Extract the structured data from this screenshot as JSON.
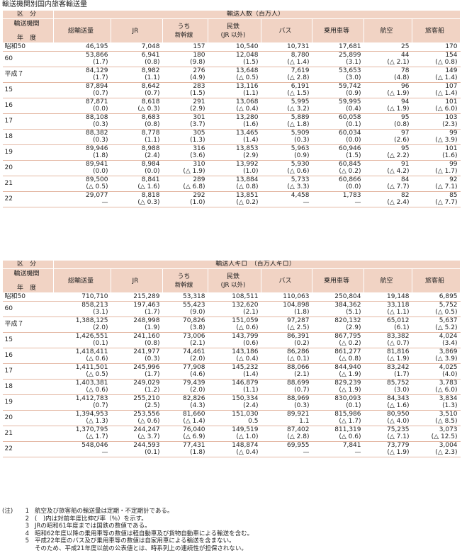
{
  "title": "輸送機関別国内旅客輸送量",
  "header": {
    "kubun": "区　分",
    "mode": "輸送機関",
    "year": "年　度",
    "cols": [
      {
        "main": "総輸送量",
        "sub": ""
      },
      {
        "main": "JR",
        "sub": ""
      },
      {
        "main": "うち",
        "sub": "新幹線"
      },
      {
        "main": "民鉄",
        "sub": "(JR 以外)"
      },
      {
        "main": "バス",
        "sub": ""
      },
      {
        "main": "乗用車等",
        "sub": ""
      },
      {
        "main": "航空",
        "sub": ""
      },
      {
        "main": "旅客船",
        "sub": ""
      }
    ]
  },
  "table1": {
    "unit": "輸送人数（百万人）",
    "rows": [
      {
        "label": "昭和50",
        "values": [
          "46,195",
          "7,048",
          "157",
          "10,540",
          "10,731",
          "17,681",
          "25",
          "170"
        ],
        "changes": null
      },
      {
        "label": "60",
        "values": [
          "53,866",
          "6,941",
          "180",
          "12,048",
          "8,780",
          "25,899",
          "44",
          "154"
        ],
        "changes": [
          "(1.7)",
          "(0.8)",
          "(9.8)",
          "(1.5)",
          "(△ 1.4)",
          "(3.1)",
          "(△ 2.1)",
          "(△ 0.8)"
        ]
      },
      {
        "label": "平成７",
        "values": [
          "84,129",
          "8,982",
          "276",
          "13,648",
          "7,619",
          "53,653",
          "78",
          "149"
        ],
        "changes": [
          "(1.7)",
          "(1.1)",
          "(4.9)",
          "(△ 0.5)",
          "(△ 2.8)",
          "(3.0)",
          "(4.8)",
          "(△ 1.4)"
        ]
      },
      {
        "label": "15",
        "values": [
          "87,894",
          "8,642",
          "283",
          "13,116",
          "6,191",
          "59,742",
          "96",
          "107"
        ],
        "changes": [
          "(0.7)",
          "(0.7)",
          "(1.5)",
          "(1.1)",
          "(△ 1.5)",
          "(0.9)",
          "(△ 1.9)",
          "(△ 1.4)"
        ]
      },
      {
        "label": "16",
        "values": [
          "87,871",
          "8,618",
          "291",
          "13,068",
          "5,995",
          "59,995",
          "94",
          "101"
        ],
        "changes": [
          "(0.0)",
          "(△ 0.3)",
          "(2.9)",
          "(△ 0.4)",
          "(△ 3.2)",
          "(0.4)",
          "(△ 1.9)",
          "(△ 6.0)"
        ]
      },
      {
        "label": "17",
        "values": [
          "88,108",
          "8,683",
          "301",
          "13,280",
          "5,889",
          "60,058",
          "95",
          "103"
        ],
        "changes": [
          "(0.3)",
          "(0.8)",
          "(3.7)",
          "(1.6)",
          "(△ 1.8)",
          "(0.1)",
          "(0.8)",
          "(2.3)"
        ]
      },
      {
        "label": "18",
        "values": [
          "88,382",
          "8,778",
          "305",
          "13,465",
          "5,909",
          "60,034",
          "97",
          "99"
        ],
        "changes": [
          "(0.3)",
          "(1.1)",
          "(1.3)",
          "(1.4)",
          "(0.3)",
          "(0.0)",
          "(2.6)",
          "(△ 3.9)"
        ]
      },
      {
        "label": "19",
        "values": [
          "89,946",
          "8,988",
          "316",
          "13,853",
          "5,963",
          "60,946",
          "95",
          "101"
        ],
        "changes": [
          "(1.8)",
          "(2.4)",
          "(3.6)",
          "(2.9)",
          "(0.9)",
          "(1.5)",
          "(△ 2.2)",
          "(1.6)"
        ]
      },
      {
        "label": "20",
        "values": [
          "89,941",
          "8,984",
          "310",
          "13,992",
          "5,930",
          "60,845",
          "91",
          "99"
        ],
        "changes": [
          "(0.0)",
          "(0.0)",
          "(△ 1.9)",
          "(1.0)",
          "(△ 0.6)",
          "(△ 0.2)",
          "(△ 4.2)",
          "(△ 1.7)"
        ]
      },
      {
        "label": "21",
        "values": [
          "89,500",
          "8,841",
          "289",
          "13,884",
          "5,733",
          "60,866",
          "84",
          "92"
        ],
        "changes": [
          "(△ 0.5)",
          "(△ 1.6)",
          "(△ 6.8)",
          "(△ 0.8)",
          "(△ 3.3)",
          "(0.0)",
          "(△ 7.7)",
          "(△ 7.1)"
        ]
      },
      {
        "label": "22",
        "values": [
          "29,077",
          "8,818",
          "292",
          "13,851",
          "4,458",
          "1,783",
          "82",
          "85"
        ],
        "changes": [
          "—",
          "(△ 0.3)",
          "(1.0)",
          "(△ 0.2)",
          "—",
          "—",
          "(△ 2.4)",
          "(△ 7.7)"
        ]
      }
    ]
  },
  "table2": {
    "unit": "輸送人キロ　（百万人キロ）",
    "rows": [
      {
        "label": "昭和50",
        "values": [
          "710,710",
          "215,289",
          "53,318",
          "108,511",
          "110,063",
          "250,804",
          "19,148",
          "6,895"
        ],
        "changes": null
      },
      {
        "label": "60",
        "values": [
          "858,213",
          "197,463",
          "55,423",
          "132,620",
          "104,898",
          "384,362",
          "33,118",
          "5,752"
        ],
        "changes": [
          "(3.1)",
          "(1.7)",
          "(9.0)",
          "(2.1)",
          "(1.8)",
          "(5.1)",
          "(△ 1.1)",
          "(△ 0.5)"
        ]
      },
      {
        "label": "平成７",
        "values": [
          "1,388,125",
          "248,998",
          "70,826",
          "151,059",
          "97,287",
          "820,132",
          "65,012",
          "5,637"
        ],
        "changes": [
          "(2.0)",
          "(1.9)",
          "(3.8)",
          "(△ 0.6)",
          "(△ 2.5)",
          "(2.9)",
          "(6.1)",
          "(△ 5.2)"
        ]
      },
      {
        "label": "15",
        "values": [
          "1,426,551",
          "241,160",
          "73,006",
          "143,799",
          "86,391",
          "867,795",
          "83,382",
          "4,024"
        ],
        "changes": [
          "(0.1)",
          "(0.8)",
          "(2.1)",
          "(0.6)",
          "(0.2)",
          "(△ 0.2)",
          "(△ 0.7)",
          "(3.4)"
        ]
      },
      {
        "label": "16",
        "values": [
          "1,418,411",
          "241,977",
          "74,461",
          "143,186",
          "86,286",
          "861,277",
          "81,816",
          "3,869"
        ],
        "changes": [
          "(△ 0.6)",
          "(0.3)",
          "(2.0)",
          "(△ 0.4)",
          "(△ 0.1)",
          "(△ 0.8)",
          "(△ 1.9)",
          "(△ 3.9)"
        ]
      },
      {
        "label": "17",
        "values": [
          "1,411,501",
          "245,996",
          "77,908",
          "145,232",
          "88,066",
          "844,940",
          "83,242",
          "4,025"
        ],
        "changes": [
          "(△ 0.5)",
          "(1.7)",
          "(4.6)",
          "(1.4)",
          "(2.1)",
          "(△ 1.9)",
          "(1.7)",
          "(4.0)"
        ]
      },
      {
        "label": "18",
        "values": [
          "1,403,381",
          "249,029",
          "79,439",
          "146,879",
          "88,699",
          "829,239",
          "85,752",
          "3,783"
        ],
        "changes": [
          "(△ 0.6)",
          "(1.2)",
          "(2.0)",
          "(1.1)",
          "(0.7)",
          "(△ 1.9)",
          "(3.0)",
          "(△ 6.0)"
        ]
      },
      {
        "label": "19",
        "values": [
          "1,412,783",
          "255,210",
          "82,826",
          "150,334",
          "88,969",
          "830,093",
          "84,343",
          "3,834"
        ],
        "changes": [
          "(0.7)",
          "(2.5)",
          "(4.3)",
          "(2.4)",
          "(0.3)",
          "(0.1)",
          "(△ 1.6)",
          "(1.3)"
        ]
      },
      {
        "label": "20",
        "values": [
          "1,394,953",
          "253,556",
          "81,660",
          "151,030",
          "89,921",
          "815,986",
          "80,950",
          "3,510"
        ],
        "changes": [
          "(△ 1.3)",
          "(△ 0.6)",
          "(△ 1.4)",
          "0.5",
          "1.1",
          "(△ 1.7)",
          "(△ 4.0)",
          "(△ 8.5)"
        ]
      },
      {
        "label": "21",
        "values": [
          "1,370,795",
          "244,247",
          "76,040",
          "149,519",
          "87,402",
          "811,319",
          "75,235",
          "3,073"
        ],
        "changes": [
          "(△ 1.7)",
          "(△ 3.7)",
          "(△ 6.9)",
          "(△ 1.0)",
          "(△ 2.8)",
          "(△ 0.6)",
          "(△ 7.1)",
          "(△ 12.5)"
        ]
      },
      {
        "label": "22",
        "values": [
          "548,046",
          "244,593",
          "77,431",
          "148,874",
          "69,955",
          "7,841",
          "73,779",
          "3,004"
        ],
        "changes": [
          "—",
          "(0.1)",
          "(1.8)",
          "(△ 0.4)",
          "—",
          "—",
          "(△ 1.9)",
          "(△ 2.3)"
        ]
      }
    ]
  },
  "notes": [
    {
      "pre": "(注)",
      "no": "1",
      "text": "航空及び旅客船の輸送量は定期・不定期計である。"
    },
    {
      "pre": "",
      "no": "2",
      "text": "(　)内は対前年度比伸び率（％）を示す。"
    },
    {
      "pre": "",
      "no": "3",
      "text": "JRの昭和61年度までは国鉄の数値である。"
    },
    {
      "pre": "",
      "no": "4",
      "text": "昭和62年度以降の乗用車等の数値は軽自動車及び貨物自動車による輸送を含む。"
    },
    {
      "pre": "",
      "no": "5",
      "text": "平成22年度のバス及び乗用車等の数値は自家用車による輸送を含まない。"
    },
    {
      "pre": "",
      "no": "",
      "text": "そのため、平成21年度以前の公表値とは、時系列上の連続性が担保されない。"
    }
  ]
}
